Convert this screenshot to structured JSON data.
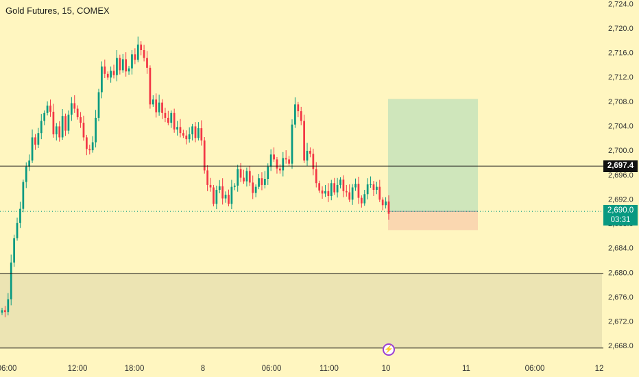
{
  "header": {
    "title": "Gold Futures, 15, COMEX"
  },
  "price_labels": {
    "line_price": "2,697.4",
    "current_price": "2,690.0",
    "countdown": "03:31"
  },
  "icons": {
    "alert": "lightning-icon"
  },
  "colors": {
    "background": "#fff6c0",
    "up": "#089981",
    "down": "#f23645",
    "zone": "#ece4b3",
    "profit": "#cfe6bb",
    "loss": "#fad7b0"
  },
  "chart_data": {
    "type": "candlestick",
    "title": "Gold Futures, 15, COMEX",
    "ylim": [
      2666,
      2724.6
    ],
    "y_ticks": [
      "2,724.0",
      "2,720.0",
      "2,716.0",
      "2,712.0",
      "2,708.0",
      "2,704.0",
      "2,700.0",
      "2,696.0",
      "2,692.0",
      "2,688.0",
      "2,684.0",
      "2,680.0",
      "2,676.0",
      "2,672.0",
      "2,668.0"
    ],
    "x_ticks": [
      "06:00",
      "12:00",
      "18:00",
      "8",
      "06:00",
      "11:00",
      "10",
      "11",
      "06:00",
      "12"
    ],
    "horizontal_lines": [
      2697.4,
      2679.8,
      2667.6
    ],
    "zone": {
      "top": 2679.8,
      "bottom": 2667.6
    },
    "position": {
      "entry": 2690.0,
      "target": 2708.4,
      "stop": 2686.9
    },
    "closes": [
      2673.8,
      2673.5,
      2675.6,
      2681.6,
      2685.6,
      2688.1,
      2690.4,
      2694.8,
      2697.3,
      2698.3,
      2702.1,
      2700.9,
      2702.8,
      2704.8,
      2706.1,
      2707.3,
      2706.3,
      2702.6,
      2703.9,
      2702.1,
      2705.6,
      2703.2,
      2705.8,
      2707.7,
      2706.8,
      2705.4,
      2704.5,
      2702.1,
      2700.2,
      2700.0,
      2701.3,
      2705.3,
      2709.5,
      2713.7,
      2712.5,
      2711.9,
      2713.0,
      2712.3,
      2715.1,
      2713.1,
      2714.9,
      2712.9,
      2713.4,
      2715.7,
      2714.8,
      2717.3,
      2716.4,
      2715.1,
      2713.5,
      2707.5,
      2708.3,
      2706.2,
      2707.8,
      2706.1,
      2705.3,
      2704.5,
      2706.1,
      2703.4,
      2703.8,
      2702.8,
      2702.4,
      2701.8,
      2702.6,
      2703.9,
      2702.0,
      2703.6,
      2701.6,
      2696.7,
      2694.3,
      2693.9,
      2691.2,
      2693.5,
      2694.1,
      2692.1,
      2692.7,
      2691.2,
      2694.0,
      2694.2,
      2696.9,
      2695.5,
      2694.9,
      2696.6,
      2694.7,
      2693.0,
      2694.0,
      2695.4,
      2694.3,
      2695.3,
      2697.3,
      2699.3,
      2698.5,
      2697.0,
      2696.7,
      2698.7,
      2698.5,
      2697.8,
      2704.2,
      2707.5,
      2706.4,
      2704.8,
      2698.3,
      2699.9,
      2699.4,
      2696.9,
      2694.6,
      2693.4,
      2692.9,
      2693.3,
      2692.5,
      2694.6,
      2693.1,
      2694.3,
      2695.2,
      2693.3,
      2693.1,
      2691.9,
      2693.9,
      2694.5,
      2692.2,
      2691.3,
      2692.8,
      2694.4,
      2694.4,
      2693.5,
      2694.0,
      2691.9,
      2691.0,
      2691.6,
      2689.6
    ]
  }
}
